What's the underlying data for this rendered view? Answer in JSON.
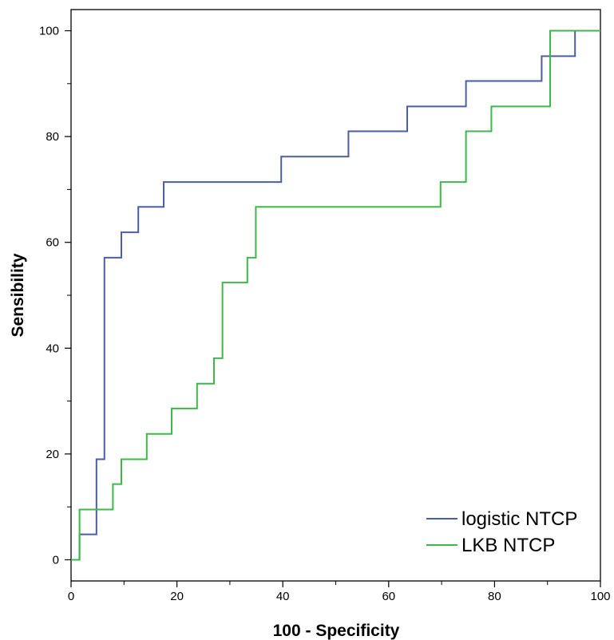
{
  "chart_data": {
    "type": "line",
    "xlabel": "100 - Specificity",
    "ylabel": "Sensibility",
    "xlim": [
      0,
      100
    ],
    "ylim": [
      -4,
      104
    ],
    "x_ticks": [
      0,
      20,
      40,
      60,
      80,
      100
    ],
    "y_ticks": [
      0,
      20,
      40,
      60,
      80,
      100
    ],
    "x_tick_labels": [
      "0",
      "20",
      "40",
      "60",
      "80",
      "100"
    ],
    "y_tick_labels": [
      "0",
      "20",
      "40",
      "60",
      "80",
      "100"
    ],
    "grid": false,
    "legend_position": "bottom-right",
    "series": [
      {
        "name": "logistic NTCP",
        "color": "#4a5ea8",
        "points": [
          [
            0,
            0
          ],
          [
            1.6,
            0
          ],
          [
            1.6,
            4.8
          ],
          [
            4.8,
            4.8
          ],
          [
            4.8,
            19
          ],
          [
            6.3,
            19
          ],
          [
            6.3,
            57.1
          ],
          [
            9.5,
            57.1
          ],
          [
            9.5,
            61.9
          ],
          [
            12.7,
            61.9
          ],
          [
            12.7,
            66.7
          ],
          [
            17.5,
            66.7
          ],
          [
            17.5,
            71.4
          ],
          [
            39.7,
            71.4
          ],
          [
            39.7,
            76.2
          ],
          [
            52.4,
            76.2
          ],
          [
            52.4,
            81
          ],
          [
            63.5,
            81
          ],
          [
            63.5,
            85.7
          ],
          [
            74.6,
            85.7
          ],
          [
            74.6,
            90.5
          ],
          [
            88.9,
            90.5
          ],
          [
            88.9,
            95.2
          ],
          [
            95.2,
            95.2
          ],
          [
            95.2,
            100
          ],
          [
            100,
            100
          ]
        ]
      },
      {
        "name": "LKB NTCP",
        "color": "#3cb84a",
        "points": [
          [
            0,
            0
          ],
          [
            1.6,
            0
          ],
          [
            1.6,
            9.5
          ],
          [
            7.9,
            9.5
          ],
          [
            7.9,
            14.3
          ],
          [
            9.5,
            14.3
          ],
          [
            9.5,
            19
          ],
          [
            14.3,
            19
          ],
          [
            14.3,
            23.8
          ],
          [
            19,
            23.8
          ],
          [
            19,
            28.6
          ],
          [
            23.8,
            28.6
          ],
          [
            23.8,
            33.3
          ],
          [
            27,
            33.3
          ],
          [
            27,
            38.1
          ],
          [
            28.6,
            38.1
          ],
          [
            28.6,
            52.4
          ],
          [
            33.3,
            52.4
          ],
          [
            33.3,
            57.1
          ],
          [
            34.9,
            57.1
          ],
          [
            34.9,
            66.7
          ],
          [
            69.8,
            66.7
          ],
          [
            69.8,
            71.4
          ],
          [
            74.6,
            71.4
          ],
          [
            74.6,
            81
          ],
          [
            79.4,
            81
          ],
          [
            79.4,
            85.7
          ],
          [
            90.5,
            85.7
          ],
          [
            90.5,
            100
          ],
          [
            100,
            100
          ]
        ]
      }
    ]
  }
}
